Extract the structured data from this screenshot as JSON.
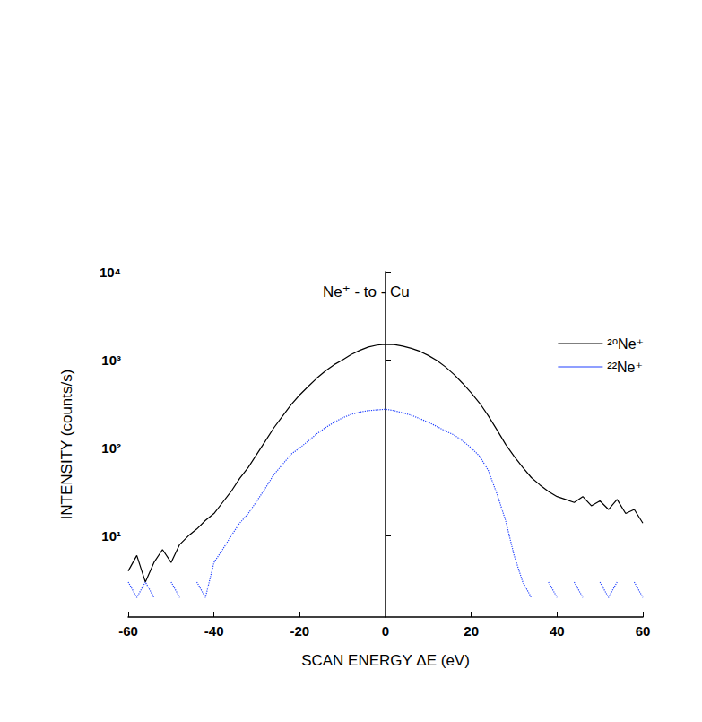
{
  "chart_data": {
    "type": "line",
    "title": "Ne⁺ - to - Cu",
    "x_label": "SCAN ENERGY ΔE (eV)",
    "y_label": "INTENSITY (counts/s)",
    "x": [
      -60,
      -58,
      -56,
      -54,
      -52,
      -50,
      -48,
      -46,
      -44,
      -42,
      -40,
      -38,
      -36,
      -34,
      -32,
      -30,
      -28,
      -26,
      -24,
      -22,
      -20,
      -18,
      -16,
      -14,
      -12,
      -10,
      -8,
      -6,
      -4,
      -2,
      0,
      2,
      4,
      6,
      8,
      10,
      12,
      14,
      16,
      18,
      20,
      22,
      24,
      26,
      28,
      30,
      32,
      34,
      36,
      38,
      40,
      42,
      44,
      46,
      48,
      50,
      52,
      54,
      56,
      58,
      60
    ],
    "series": [
      {
        "name": "²⁰Ne⁺",
        "color": "#000000",
        "line_style": "solid",
        "values": [
          4,
          6,
          3,
          5,
          7,
          5,
          8,
          10,
          12,
          15,
          18,
          24,
          32,
          45,
          60,
          85,
          120,
          170,
          230,
          310,
          400,
          500,
          620,
          750,
          880,
          1000,
          1150,
          1280,
          1400,
          1470,
          1500,
          1490,
          1430,
          1350,
          1250,
          1120,
          980,
          830,
          680,
          540,
          420,
          320,
          230,
          160,
          110,
          80,
          60,
          46,
          38,
          32,
          28,
          26,
          24,
          28,
          22,
          25,
          20,
          26,
          18,
          20,
          14
        ]
      },
      {
        "name": "²²Ne⁺",
        "color": "#2040ff",
        "line_style": "dotted",
        "values": [
          3,
          2,
          3,
          2,
          null,
          3,
          2,
          null,
          3,
          2,
          5,
          7,
          10,
          14,
          18,
          25,
          35,
          50,
          65,
          85,
          100,
          120,
          145,
          170,
          195,
          220,
          240,
          255,
          265,
          270,
          275,
          265,
          250,
          235,
          215,
          195,
          175,
          155,
          140,
          120,
          100,
          80,
          55,
          30,
          15,
          6,
          3,
          2,
          null,
          3,
          2,
          null,
          3,
          2,
          null,
          3,
          2,
          3,
          null,
          3,
          2
        ]
      }
    ],
    "xlim": [
      -60,
      60
    ],
    "xticks": [
      -60,
      -40,
      -20,
      0,
      20,
      40,
      60
    ],
    "ylim": [
      1.2,
      10000
    ],
    "yticks": [
      {
        "value": 10,
        "label": "10¹"
      },
      {
        "value": 100,
        "label": "10²"
      },
      {
        "value": 1000,
        "label": "10³"
      },
      {
        "value": 10000,
        "label": "10⁴"
      }
    ],
    "log": "y",
    "grid": false,
    "legend": "upper right"
  }
}
